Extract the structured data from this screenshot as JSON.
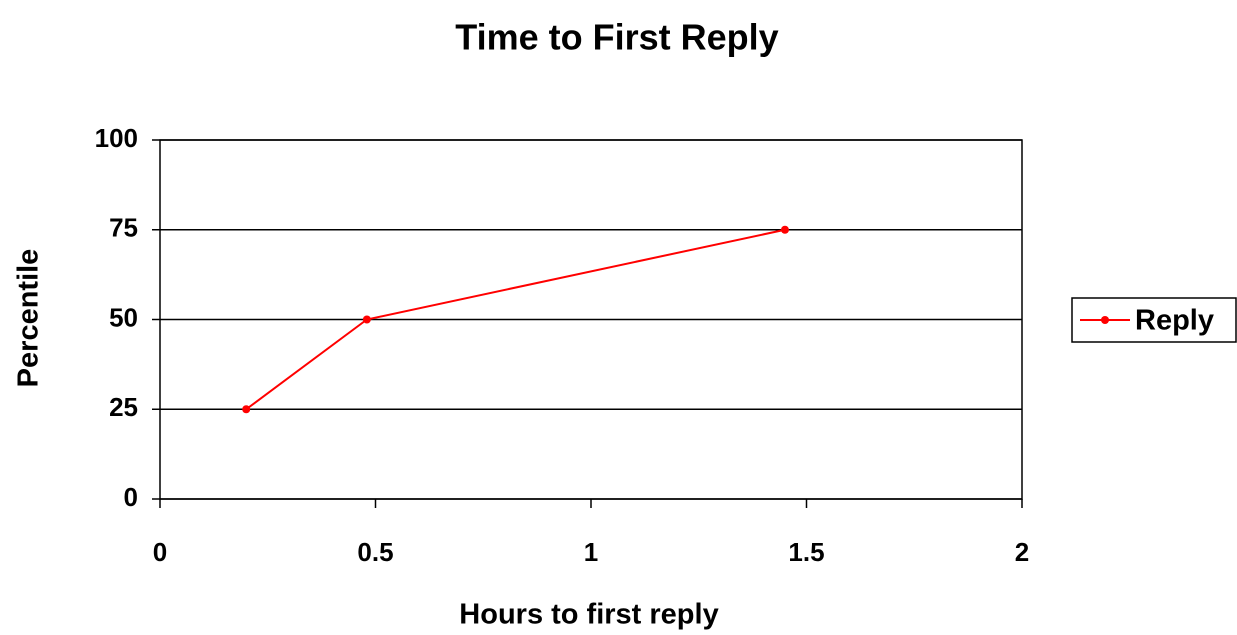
{
  "chart_data": {
    "type": "line",
    "title": "Time to First Reply",
    "x_label": "Hours to first reply",
    "y_label": "Percentile",
    "x": [
      0.2,
      0.48,
      1.45
    ],
    "series": [
      {
        "name": "Reply",
        "color": "#ff0000",
        "values": [
          25,
          50,
          75
        ]
      }
    ],
    "xlim": [
      0,
      2
    ],
    "xticks": [
      0,
      0.5,
      1,
      1.5,
      2
    ],
    "ylim": [
      0,
      100
    ],
    "yticks": [
      0,
      25,
      50,
      75,
      100
    ],
    "grid": true,
    "legend": "right"
  }
}
